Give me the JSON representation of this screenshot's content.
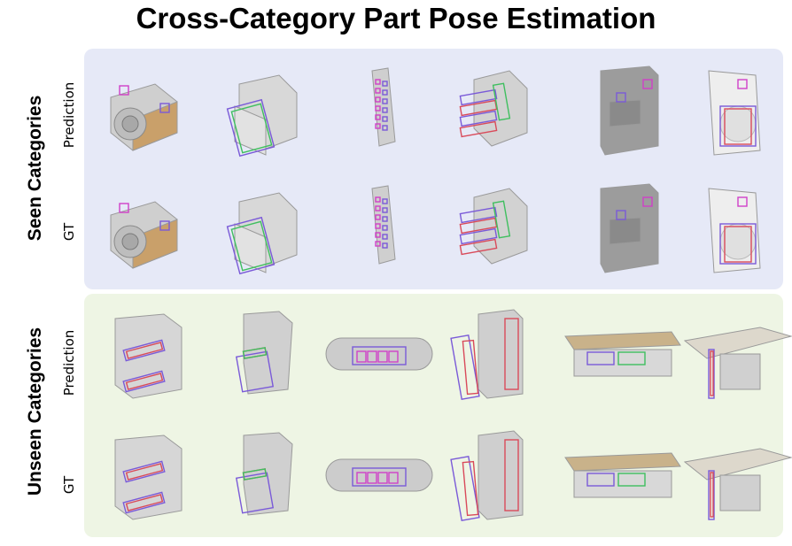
{
  "title": "Cross-Category Part Pose Estimation",
  "groups": [
    {
      "label": "Seen Categories",
      "rows": [
        "Prediction",
        "GT"
      ],
      "objects": [
        "camera-icon",
        "safe-box-icon",
        "remote-control-icon",
        "drawer-cabinet-icon",
        "coffee-machine-icon",
        "washing-machine-icon"
      ]
    },
    {
      "label": "Unseen Categories",
      "rows": [
        "Prediction",
        "GT"
      ],
      "objects": [
        "oven-icon",
        "stove-icon",
        "dishwasher-box-icon",
        "refrigerator-icon",
        "table-drawer-icon",
        "desk-door-icon"
      ]
    }
  ],
  "colors": {
    "seen_bg": "#e6e9f7",
    "unseen_bg": "#eef5e4",
    "bbox_purple": "#7a5ad8",
    "bbox_red": "#d94a5a",
    "bbox_green": "#3fbf5f",
    "bbox_magenta": "#d040c8"
  }
}
